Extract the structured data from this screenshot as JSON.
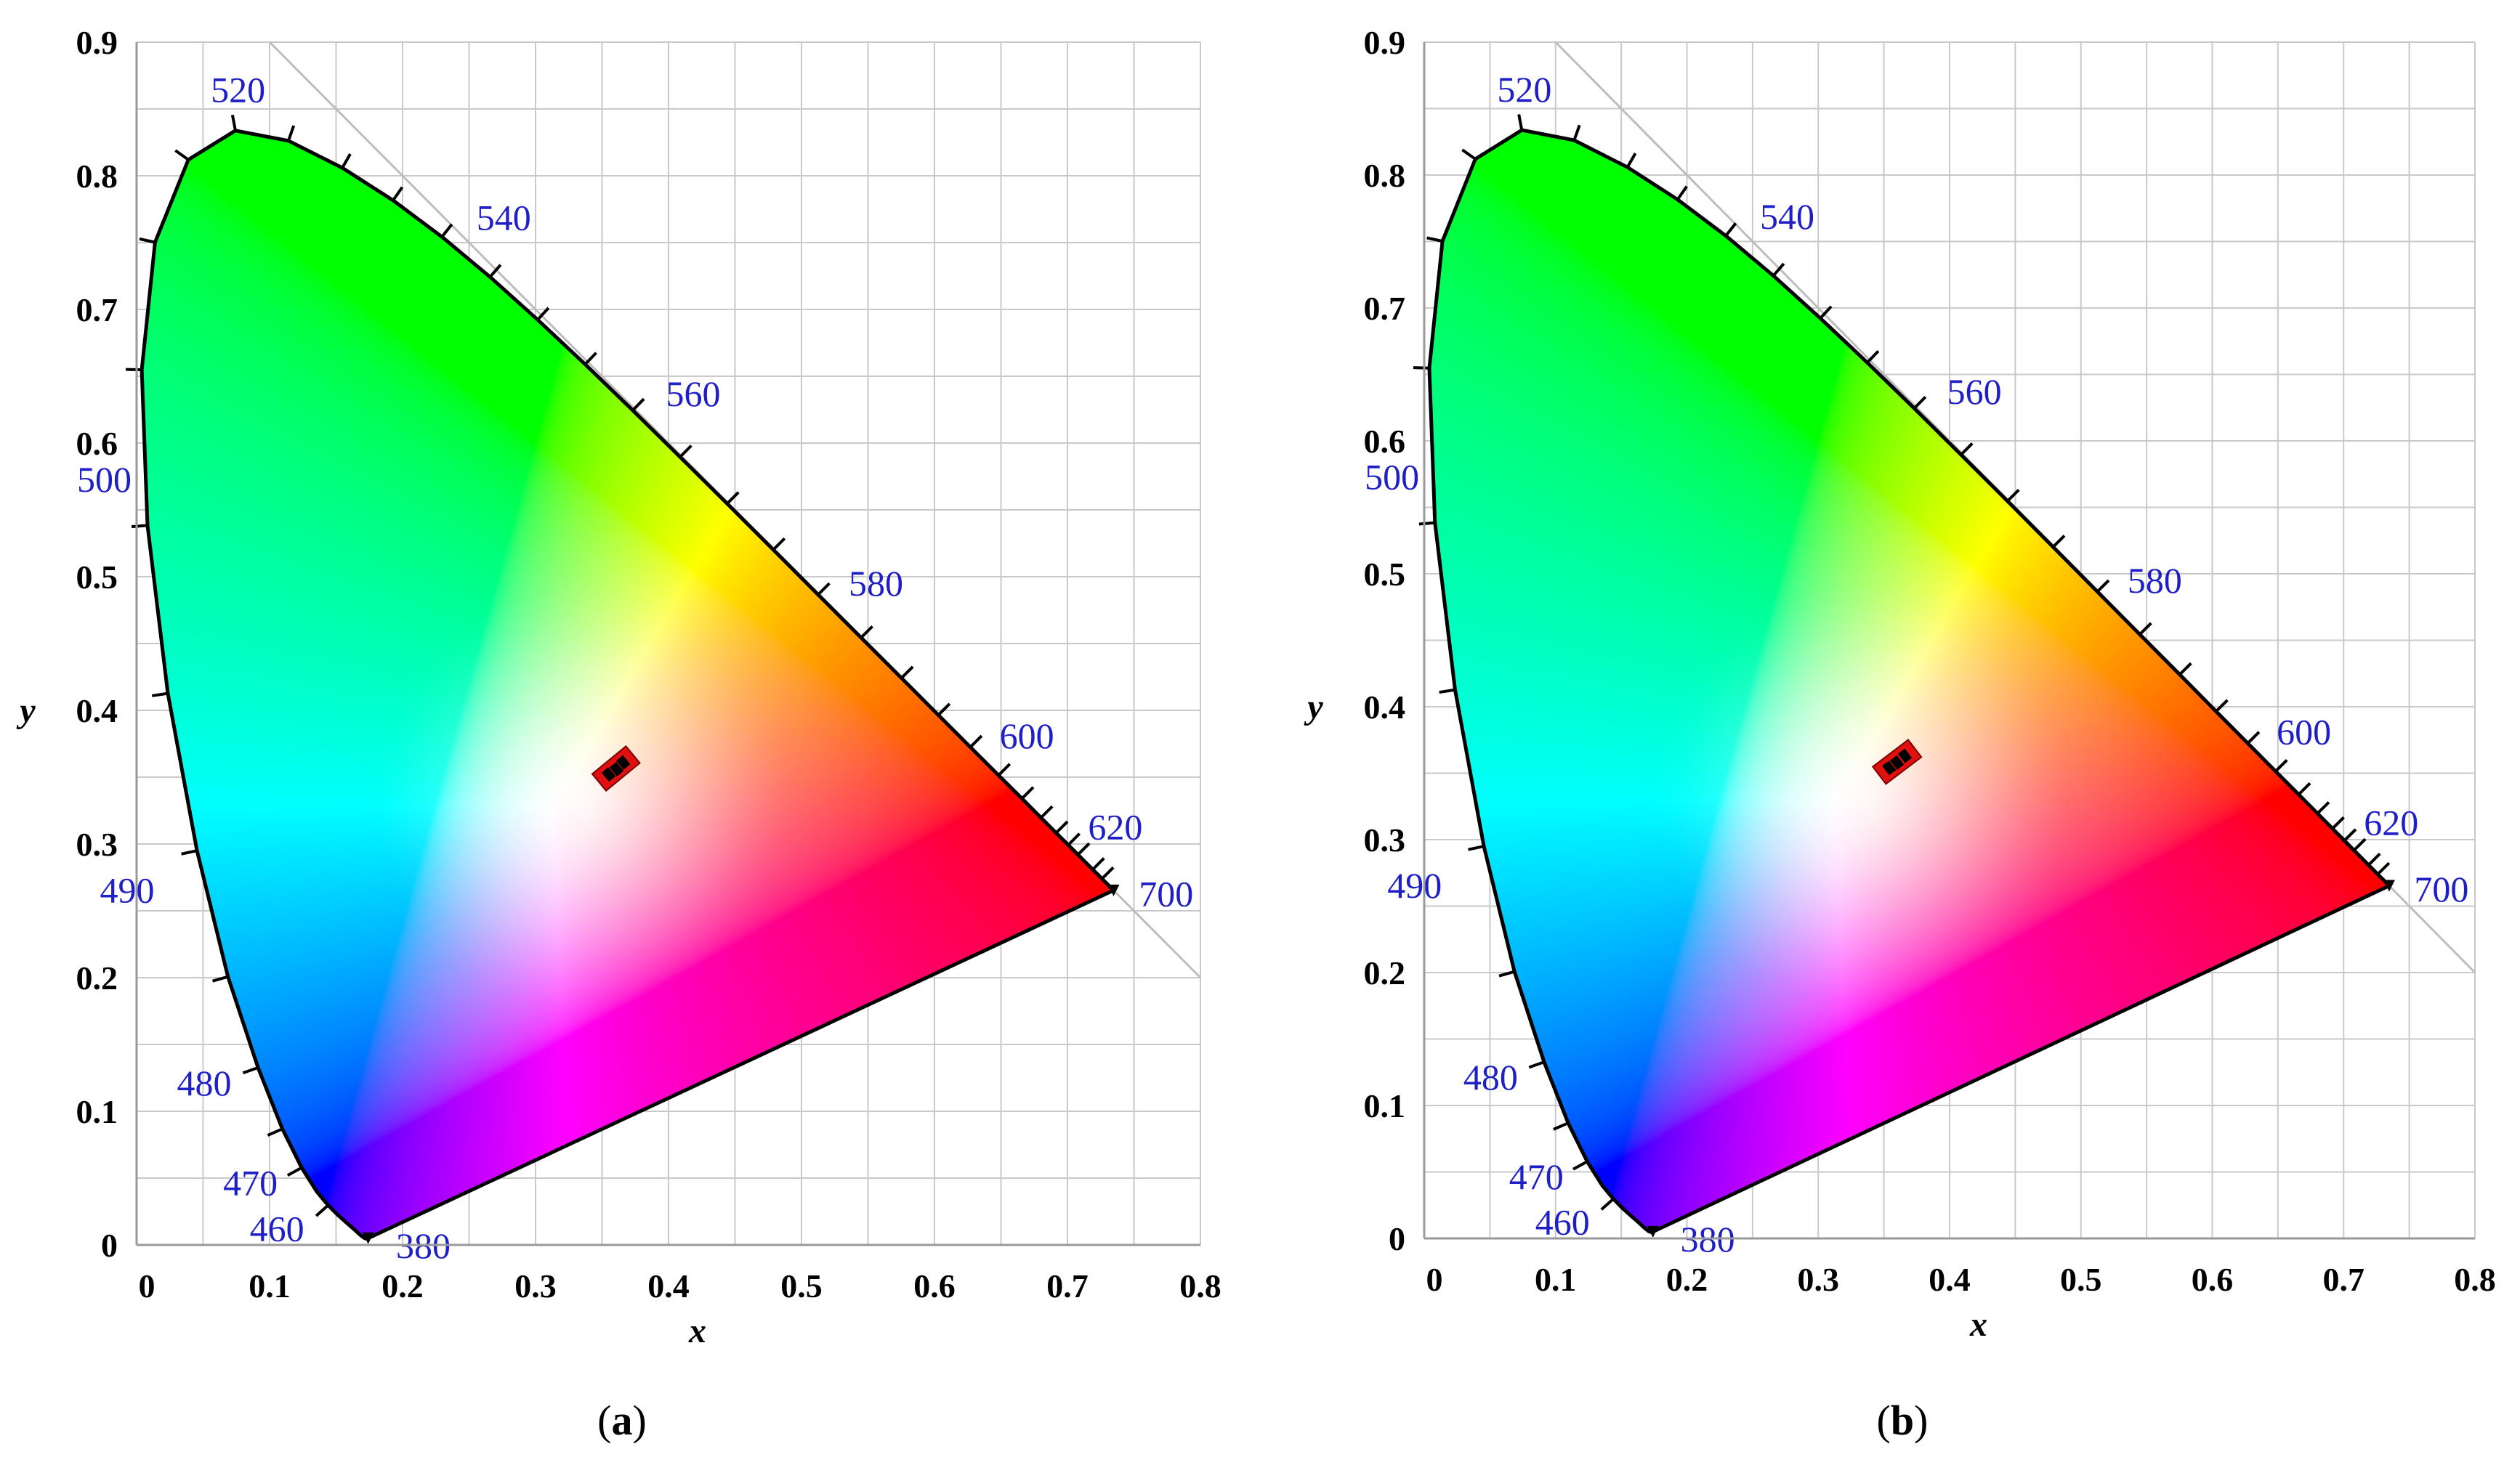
{
  "figure": {
    "panels": [
      {
        "label_prefix": "(",
        "label_letter": "a",
        "label_suffix": ")"
      },
      {
        "label_prefix": "(",
        "label_letter": "b",
        "label_suffix": ")"
      }
    ]
  },
  "chart_data": [
    {
      "type": "scatter",
      "title": "",
      "xlabel": "x",
      "ylabel": "y",
      "xlim": [
        0,
        0.8
      ],
      "ylim": [
        0,
        0.9
      ],
      "x_ticks": [
        "0",
        "0.1",
        "0.2",
        "0.3",
        "0.4",
        "0.5",
        "0.6",
        "0.7",
        "0.8"
      ],
      "y_ticks": [
        "0",
        "0.1",
        "0.2",
        "0.3",
        "0.4",
        "0.5",
        "0.6",
        "0.7",
        "0.8",
        "0.9"
      ],
      "grid": true,
      "grid_step": 0.05,
      "wavelength_labels": [
        "380",
        "460",
        "470",
        "480",
        "490",
        "500",
        "520",
        "540",
        "560",
        "580",
        "600",
        "620",
        "700"
      ],
      "points": [
        {
          "x": 0.355,
          "y": 0.352
        },
        {
          "x": 0.361,
          "y": 0.356
        },
        {
          "x": 0.366,
          "y": 0.361
        }
      ],
      "marker_color": "#000000",
      "highlight_color": "#e01010"
    },
    {
      "type": "scatter",
      "title": "",
      "xlabel": "x",
      "ylabel": "y",
      "xlim": [
        0,
        0.8
      ],
      "ylim": [
        0,
        0.9
      ],
      "x_ticks": [
        "0",
        "0.1",
        "0.2",
        "0.3",
        "0.4",
        "0.5",
        "0.6",
        "0.7",
        "0.8"
      ],
      "y_ticks": [
        "0",
        "0.1",
        "0.2",
        "0.3",
        "0.4",
        "0.5",
        "0.6",
        "0.7",
        "0.8",
        "0.9"
      ],
      "grid": true,
      "grid_step": 0.05,
      "wavelength_labels": [
        "380",
        "460",
        "470",
        "480",
        "490",
        "500",
        "520",
        "540",
        "560",
        "580",
        "600",
        "620",
        "700"
      ],
      "points": [
        {
          "x": 0.354,
          "y": 0.354
        },
        {
          "x": 0.36,
          "y": 0.358
        },
        {
          "x": 0.366,
          "y": 0.363
        }
      ],
      "marker_color": "#000000",
      "highlight_color": "#e01010"
    }
  ]
}
